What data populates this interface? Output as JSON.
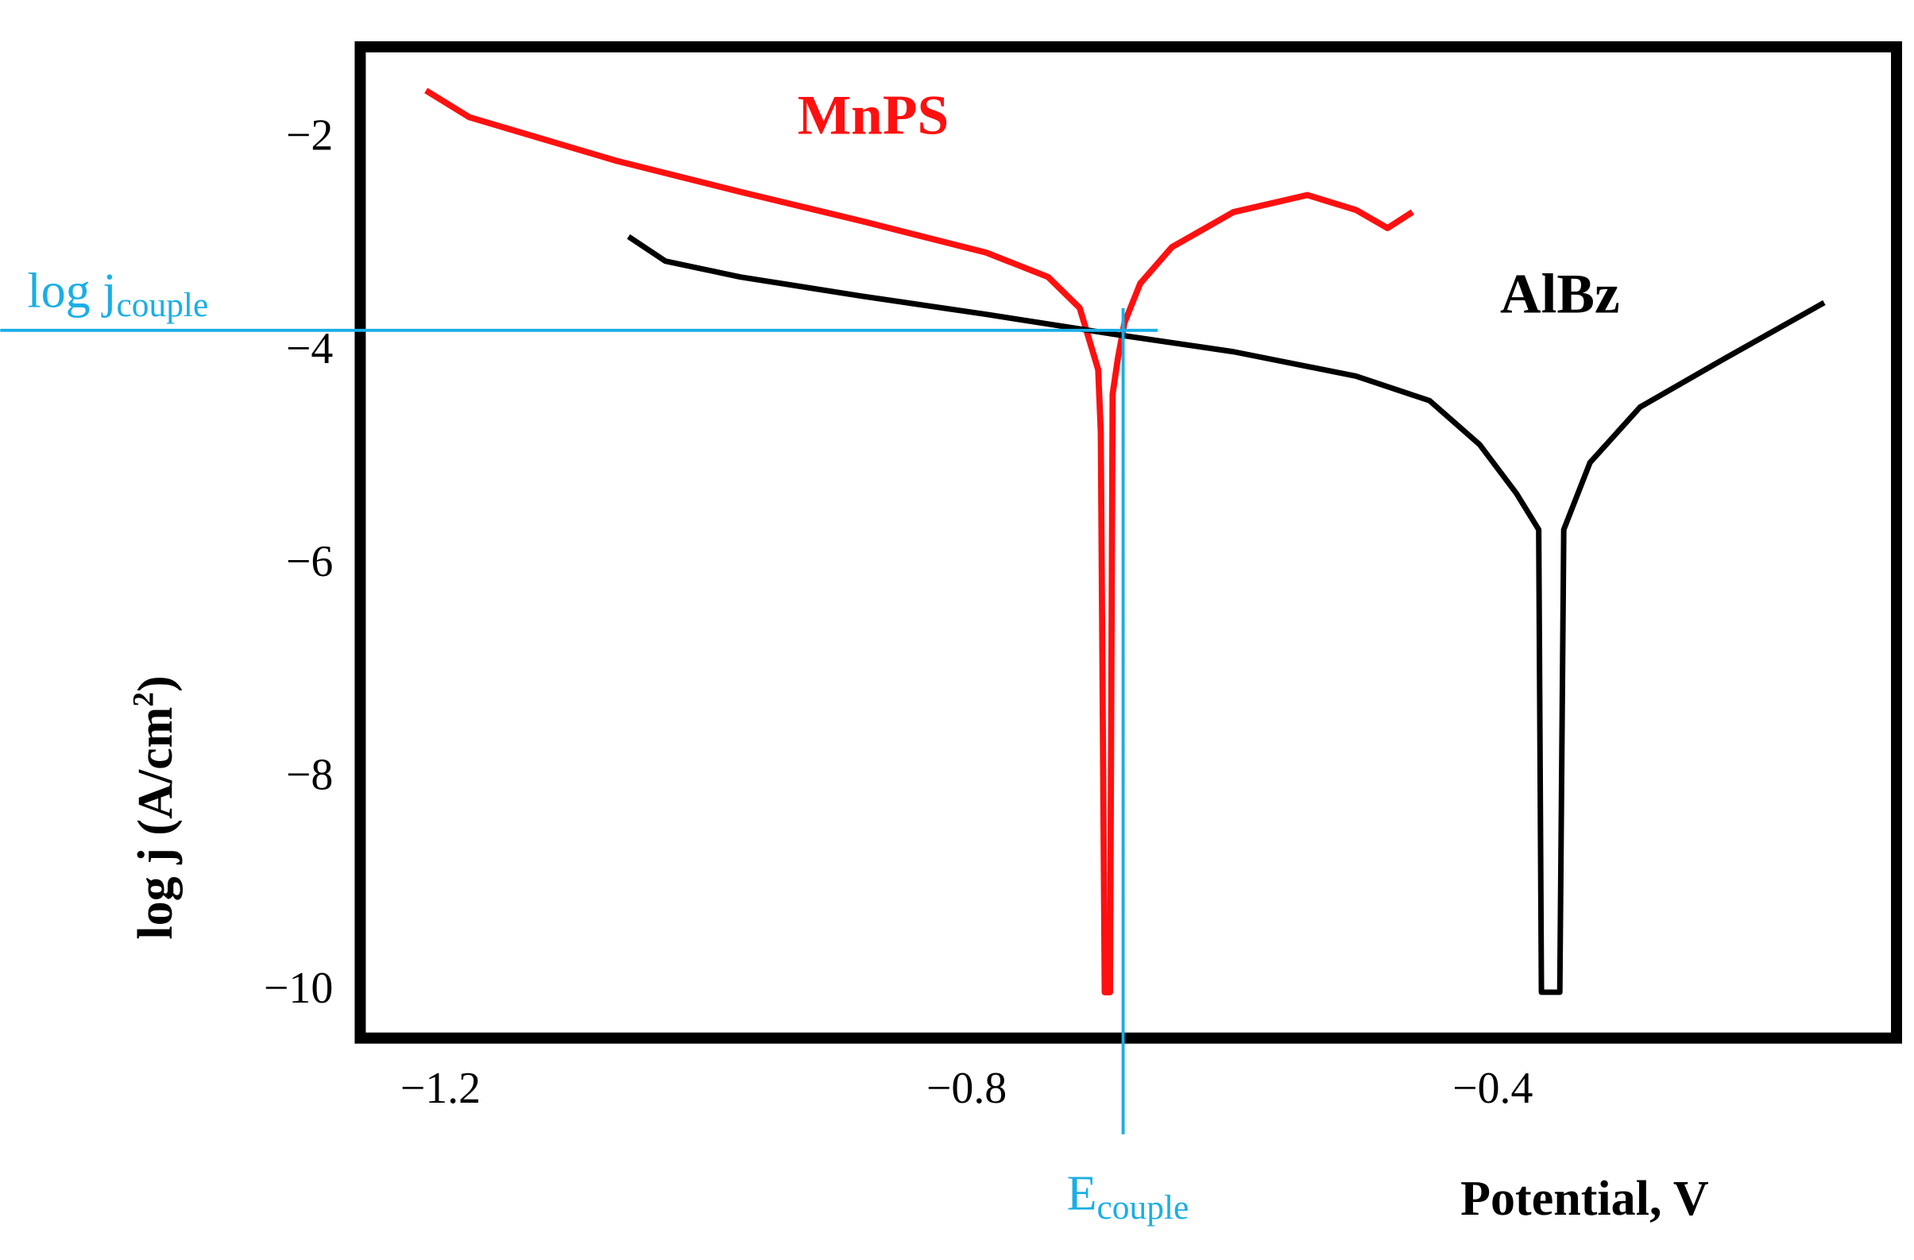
{
  "chart_data": {
    "type": "line",
    "xlabel": "Potential, V",
    "ylabel": [
      "log j (A/cm",
      "2",
      ")"
    ],
    "xlim": [
      -1.261,
      -0.093
    ],
    "ylim": [
      -10.43,
      -1.13
    ],
    "xticks": [
      {
        "value": -1.2,
        "label": "−1.2"
      },
      {
        "value": -0.8,
        "label": "−0.8"
      },
      {
        "value": -0.4,
        "label": "−0.4"
      }
    ],
    "yticks": [
      {
        "value": -2,
        "label": "−2"
      },
      {
        "value": -4,
        "label": "−4"
      },
      {
        "value": -6,
        "label": "−6"
      },
      {
        "value": -8,
        "label": "−8"
      },
      {
        "value": -10,
        "label": "−10"
      }
    ],
    "series": [
      {
        "name": "MnPS",
        "color": "#ff1010",
        "x": [
          -1.211,
          -1.178,
          -1.066,
          -0.972,
          -0.878,
          -0.785,
          -0.738,
          -0.714,
          -0.7,
          -0.698,
          -0.695,
          -0.691,
          -0.689,
          -0.685,
          -0.68,
          -0.668,
          -0.644,
          -0.597,
          -0.541,
          -0.504,
          -0.48,
          -0.461
        ],
        "values": [
          -1.54,
          -1.79,
          -2.2,
          -2.49,
          -2.77,
          -3.06,
          -3.29,
          -3.58,
          -4.16,
          -4.74,
          -10.0,
          -10.0,
          -4.39,
          -4.05,
          -3.72,
          -3.35,
          -3.01,
          -2.68,
          -2.52,
          -2.66,
          -2.83,
          -2.68
        ]
      },
      {
        "name": "AlBz",
        "color": "#000000",
        "x": [
          -1.057,
          -1.029,
          -0.972,
          -0.879,
          -0.785,
          -0.691,
          -0.597,
          -0.504,
          -0.448,
          -0.41,
          -0.382,
          -0.365,
          -0.363,
          -0.349,
          -0.346,
          -0.326,
          -0.288,
          -0.223,
          -0.148
        ],
        "values": [
          -2.91,
          -3.14,
          -3.29,
          -3.47,
          -3.64,
          -3.82,
          -3.99,
          -4.22,
          -4.45,
          -4.86,
          -5.32,
          -5.66,
          -10.0,
          -10.0,
          -5.66,
          -5.03,
          -4.51,
          -4.05,
          -3.53
        ]
      }
    ],
    "couple": {
      "x": -0.681,
      "y": -3.79,
      "color": "#1aaee6",
      "ylabel": [
        "log j",
        "couple"
      ],
      "xlabel": [
        "E",
        "couple"
      ]
    }
  }
}
